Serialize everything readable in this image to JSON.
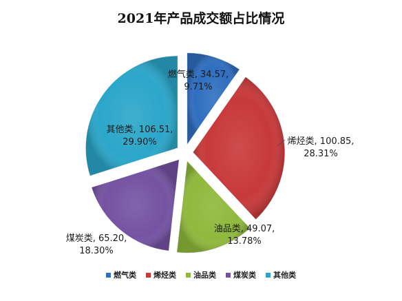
{
  "chart_data": {
    "type": "pie",
    "title": "2021年产品成交额占比情况",
    "series": [
      {
        "name": "",
        "slices": [
          {
            "category": "燃气类",
            "value": 34.57,
            "percent_label": "9.71%",
            "color": "#2f6fc0"
          },
          {
            "category": "烯烃类",
            "value": 100.85,
            "percent_label": "28.31%",
            "color": "#c8393a"
          },
          {
            "category": "油品类",
            "value": 49.07,
            "percent_label": "13.78%",
            "color": "#8fb93c"
          },
          {
            "category": "煤炭类",
            "value": 65.2,
            "percent_label": "18.30%",
            "color": "#7453a2"
          },
          {
            "category": "其他类",
            "value": 106.51,
            "percent_label": "29.90%",
            "color": "#2ba6c9"
          }
        ]
      }
    ],
    "legend_position": "bottom",
    "exploded": true,
    "start_angle_deg": 0,
    "direction": "clockwise",
    "label_line1": [
      "燃气类, 34.57,",
      "烯烃类, 100.85,",
      "油品类, 49.07,",
      "煤炭类, 65.20,",
      "其他类, 106.51,"
    ]
  }
}
